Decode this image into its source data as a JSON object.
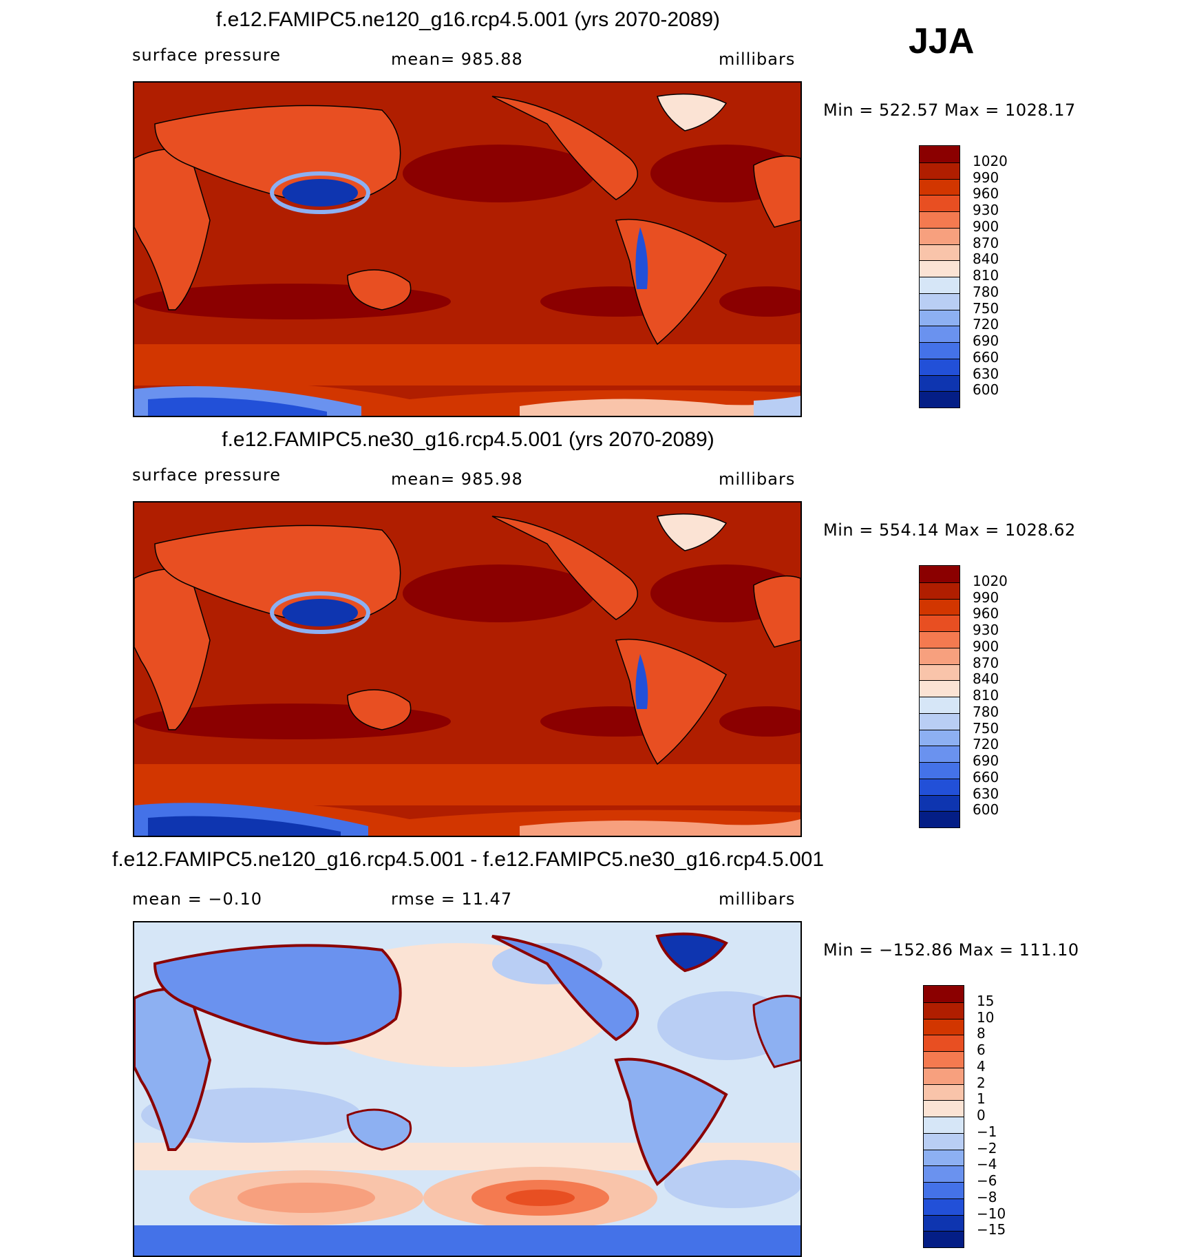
{
  "season": "JJA",
  "colors": {
    "warm_scale": [
      "#8b0000",
      "#b01e00",
      "#d23600",
      "#e84f22",
      "#f47a50",
      "#f7a07e",
      "#f9c4aa",
      "#fbe3d4",
      "#d6e6f7",
      "#b9cef4",
      "#8db0f2",
      "#6a92ef",
      "#4472e8",
      "#2250d8",
      "#0e35b0",
      "#041e86"
    ],
    "diff_scale": [
      "#8b0000",
      "#b01e00",
      "#d23600",
      "#e84f22",
      "#f47a50",
      "#f7a07e",
      "#f9c4aa",
      "#fbe3d4",
      "#d6e6f7",
      "#b9cef4",
      "#8db0f2",
      "#6a92ef",
      "#4472e8",
      "#2250d8",
      "#0e35b0",
      "#041e86"
    ]
  },
  "panels": [
    {
      "title": "f.e12.FAMIPC5.ne120_g16.rcp4.5.001 (yrs 2070-2089)",
      "left_label": "surface pressure",
      "center_label": "mean=  985.88",
      "units": "millibars",
      "minmax": "Min  =  522.57  Max  =  1028.17",
      "levels": [
        "1020",
        "990",
        "960",
        "930",
        "900",
        "870",
        "840",
        "810",
        "780",
        "750",
        "720",
        "690",
        "660",
        "630",
        "600"
      ]
    },
    {
      "title": "f.e12.FAMIPC5.ne30_g16.rcp4.5.001 (yrs 2070-2089)",
      "left_label": "surface pressure",
      "center_label": "mean=  985.98",
      "units": "millibars",
      "minmax": "Min  =  554.14  Max  =  1028.62",
      "levels": [
        "1020",
        "990",
        "960",
        "930",
        "900",
        "870",
        "840",
        "810",
        "780",
        "750",
        "720",
        "690",
        "660",
        "630",
        "600"
      ]
    },
    {
      "title": "f.e12.FAMIPC5.ne120_g16.rcp4.5.001 - f.e12.FAMIPC5.ne30_g16.rcp4.5.001",
      "left_label": "mean =   −0.10",
      "center_label": "rmse  =    11.47",
      "units": "millibars",
      "minmax": "Min  =  −152.86  Max  =  111.10",
      "levels": [
        "15",
        "10",
        "8",
        "6",
        "4",
        "2",
        "1",
        "0",
        "−1",
        "−2",
        "−4",
        "−6",
        "−8",
        "−10",
        "−15"
      ]
    }
  ]
}
